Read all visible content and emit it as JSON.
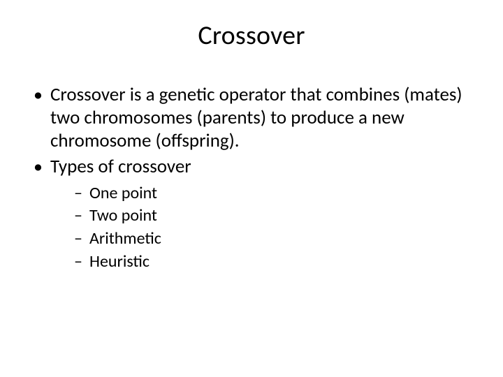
{
  "slide": {
    "title": "Crossover",
    "bullets": [
      "Crossover is a genetic operator that combines (mates) two chromosomes (parents) to produce a new chromosome (offspring).",
      "Types of crossover"
    ],
    "sub_bullets": [
      "One point",
      "Two point",
      "Arithmetic",
      "Heuristic"
    ],
    "colors": {
      "background": "#ffffff",
      "text": "#000000"
    },
    "fonts": {
      "title_size_pt": 38,
      "body_size_pt": 27,
      "sub_size_pt": 24,
      "family": "Calibri"
    }
  }
}
